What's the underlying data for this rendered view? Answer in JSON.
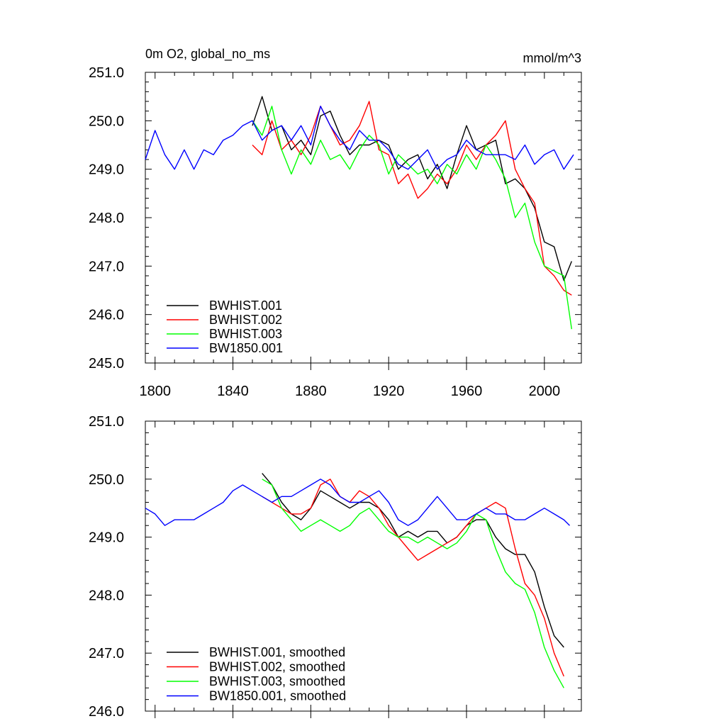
{
  "colors": {
    "black": "#000000",
    "red": "#ff0000",
    "green": "#00ff00",
    "blue": "#0000ff"
  },
  "chart_data": [
    {
      "type": "line",
      "title": "0m O2, global_no_ms",
      "units": "mmol/m^3",
      "xlim": [
        1795,
        2019
      ],
      "ylim": [
        245.0,
        251.0
      ],
      "x_ticks": [
        "1800",
        "1840",
        "1880",
        "1920",
        "1960",
        "2000"
      ],
      "y_ticks": [
        "245.0",
        "246.0",
        "247.0",
        "248.0",
        "249.0",
        "250.0",
        "251.0"
      ],
      "legend_position": "bottom-left",
      "series": [
        {
          "name": "BWHIST.001",
          "color": "#000000",
          "x": [
            1850,
            1855,
            1860,
            1865,
            1870,
            1875,
            1880,
            1885,
            1890,
            1895,
            1900,
            1905,
            1910,
            1915,
            1920,
            1925,
            1930,
            1935,
            1940,
            1945,
            1950,
            1955,
            1960,
            1965,
            1970,
            1975,
            1980,
            1985,
            1990,
            1995,
            2000,
            2005,
            2010,
            2014
          ],
          "y": [
            249.9,
            250.5,
            249.8,
            249.9,
            249.4,
            249.6,
            249.3,
            250.1,
            250.2,
            249.7,
            249.3,
            249.5,
            249.5,
            249.6,
            249.5,
            249.0,
            249.2,
            249.3,
            248.8,
            249.1,
            248.6,
            249.3,
            249.9,
            249.4,
            249.5,
            249.6,
            248.7,
            248.8,
            248.6,
            248.2,
            247.5,
            247.4,
            246.7,
            247.1
          ]
        },
        {
          "name": "BWHIST.002",
          "color": "#ff0000",
          "x": [
            1850,
            1855,
            1860,
            1865,
            1870,
            1875,
            1880,
            1885,
            1890,
            1895,
            1900,
            1905,
            1910,
            1915,
            1920,
            1925,
            1930,
            1935,
            1940,
            1945,
            1950,
            1955,
            1960,
            1965,
            1970,
            1975,
            1980,
            1985,
            1990,
            1995,
            2000,
            2005,
            2010,
            2014
          ],
          "y": [
            249.5,
            249.3,
            250.0,
            249.4,
            249.6,
            249.3,
            249.7,
            250.3,
            249.9,
            249.5,
            249.6,
            249.9,
            250.4,
            249.4,
            249.3,
            248.7,
            248.9,
            248.4,
            248.6,
            248.9,
            248.7,
            249.0,
            249.5,
            249.2,
            249.5,
            249.7,
            250.0,
            249.0,
            248.6,
            248.3,
            247.0,
            246.8,
            246.5,
            246.4
          ]
        },
        {
          "name": "BWHIST.003",
          "color": "#00ff00",
          "x": [
            1850,
            1855,
            1860,
            1865,
            1870,
            1875,
            1880,
            1885,
            1890,
            1895,
            1900,
            1905,
            1910,
            1915,
            1920,
            1925,
            1930,
            1935,
            1940,
            1945,
            1950,
            1955,
            1960,
            1965,
            1970,
            1975,
            1980,
            1985,
            1990,
            1995,
            2000,
            2005,
            2010,
            2014
          ],
          "y": [
            250.0,
            249.7,
            250.3,
            249.4,
            248.9,
            249.4,
            249.1,
            249.6,
            249.2,
            249.3,
            249.0,
            249.4,
            249.7,
            249.5,
            248.9,
            249.3,
            249.1,
            248.9,
            249.0,
            248.7,
            249.1,
            248.9,
            249.3,
            249.0,
            249.5,
            249.2,
            248.8,
            248.0,
            248.3,
            247.5,
            247.0,
            246.9,
            246.8,
            245.7
          ]
        },
        {
          "name": "BW1850.001",
          "color": "#0000ff",
          "x": [
            1795,
            1800,
            1805,
            1810,
            1815,
            1820,
            1825,
            1830,
            1835,
            1840,
            1845,
            1850,
            1855,
            1860,
            1865,
            1870,
            1875,
            1880,
            1885,
            1890,
            1895,
            1900,
            1905,
            1910,
            1915,
            1920,
            1925,
            1930,
            1935,
            1940,
            1945,
            1950,
            1955,
            1960,
            1965,
            1970,
            1975,
            1980,
            1985,
            1990,
            1995,
            2000,
            2005,
            2010,
            2015
          ],
          "y": [
            249.2,
            249.8,
            249.3,
            249.0,
            249.4,
            249.0,
            249.4,
            249.3,
            249.6,
            249.7,
            249.9,
            250.0,
            249.6,
            249.8,
            249.9,
            249.6,
            249.9,
            249.5,
            250.3,
            249.9,
            249.6,
            249.4,
            249.8,
            249.6,
            249.6,
            249.4,
            249.1,
            249.0,
            249.2,
            249.4,
            249.0,
            249.2,
            249.3,
            249.6,
            249.4,
            249.3,
            249.3,
            249.3,
            249.2,
            249.5,
            249.1,
            249.3,
            249.4,
            249.0,
            249.3
          ]
        }
      ]
    },
    {
      "type": "line",
      "xlim": [
        1795,
        2019
      ],
      "ylim": [
        246.0,
        251.0
      ],
      "y_ticks": [
        "246.0",
        "247.0",
        "248.0",
        "249.0",
        "250.0",
        "251.0"
      ],
      "legend_position": "bottom-left",
      "series": [
        {
          "name": "BWHIST.001, smoothed",
          "color": "#000000",
          "x": [
            1855,
            1860,
            1865,
            1870,
            1875,
            1880,
            1885,
            1890,
            1895,
            1900,
            1905,
            1910,
            1915,
            1920,
            1925,
            1930,
            1935,
            1940,
            1945,
            1950,
            1955,
            1960,
            1965,
            1970,
            1975,
            1980,
            1985,
            1990,
            1995,
            2000,
            2005,
            2010
          ],
          "y": [
            250.1,
            249.9,
            249.6,
            249.4,
            249.3,
            249.5,
            249.8,
            249.7,
            249.6,
            249.5,
            249.6,
            249.6,
            249.5,
            249.3,
            249.0,
            249.1,
            249.0,
            249.1,
            249.1,
            248.9,
            249.0,
            249.2,
            249.3,
            249.3,
            249.0,
            248.8,
            248.7,
            248.7,
            248.4,
            247.8,
            247.3,
            247.1
          ]
        },
        {
          "name": "BWHIST.002, smoothed",
          "color": "#ff0000",
          "x": [
            1855,
            1860,
            1865,
            1870,
            1875,
            1880,
            1885,
            1890,
            1895,
            1900,
            1905,
            1910,
            1915,
            1920,
            1925,
            1930,
            1935,
            1940,
            1945,
            1950,
            1955,
            1960,
            1965,
            1970,
            1975,
            1980,
            1985,
            1990,
            1995,
            2000,
            2005,
            2010
          ],
          "y": [
            249.7,
            249.6,
            249.5,
            249.4,
            249.4,
            249.5,
            249.9,
            250.0,
            249.7,
            249.6,
            249.8,
            249.7,
            249.5,
            249.2,
            249.0,
            248.8,
            248.6,
            248.7,
            248.8,
            248.9,
            249.0,
            249.2,
            249.4,
            249.5,
            249.6,
            249.5,
            248.8,
            248.2,
            248.0,
            247.6,
            247.0,
            246.6
          ]
        },
        {
          "name": "BWHIST.003, smoothed",
          "color": "#00ff00",
          "x": [
            1855,
            1860,
            1865,
            1870,
            1875,
            1880,
            1885,
            1890,
            1895,
            1900,
            1905,
            1910,
            1915,
            1920,
            1925,
            1930,
            1935,
            1940,
            1945,
            1950,
            1955,
            1960,
            1965,
            1970,
            1975,
            1980,
            1985,
            1990,
            1995,
            2000,
            2005,
            2010
          ],
          "y": [
            250.0,
            249.9,
            249.5,
            249.3,
            249.1,
            249.2,
            249.3,
            249.2,
            249.1,
            249.2,
            249.4,
            249.5,
            249.3,
            249.1,
            249.0,
            249.0,
            248.9,
            249.0,
            248.9,
            248.8,
            248.9,
            249.1,
            249.4,
            249.3,
            248.8,
            248.4,
            248.2,
            248.1,
            247.7,
            247.1,
            246.7,
            246.4
          ]
        },
        {
          "name": "BW1850.001, smoothed",
          "color": "#0000ff",
          "x": [
            1795,
            1800,
            1805,
            1810,
            1815,
            1820,
            1825,
            1830,
            1835,
            1840,
            1845,
            1850,
            1855,
            1860,
            1865,
            1870,
            1875,
            1880,
            1885,
            1890,
            1895,
            1900,
            1905,
            1910,
            1915,
            1920,
            1925,
            1930,
            1935,
            1940,
            1945,
            1950,
            1955,
            1960,
            1965,
            1970,
            1975,
            1980,
            1985,
            1990,
            1995,
            2000,
            2005,
            2010,
            2013
          ],
          "y": [
            249.5,
            249.4,
            249.2,
            249.3,
            249.3,
            249.3,
            249.4,
            249.5,
            249.6,
            249.8,
            249.9,
            249.8,
            249.7,
            249.6,
            249.7,
            249.7,
            249.8,
            249.9,
            250.0,
            249.9,
            249.7,
            249.6,
            249.6,
            249.7,
            249.8,
            249.6,
            249.3,
            249.2,
            249.3,
            249.5,
            249.7,
            249.5,
            249.3,
            249.3,
            249.4,
            249.5,
            249.4,
            249.4,
            249.3,
            249.3,
            249.4,
            249.5,
            249.4,
            249.3,
            249.2
          ]
        }
      ]
    }
  ]
}
